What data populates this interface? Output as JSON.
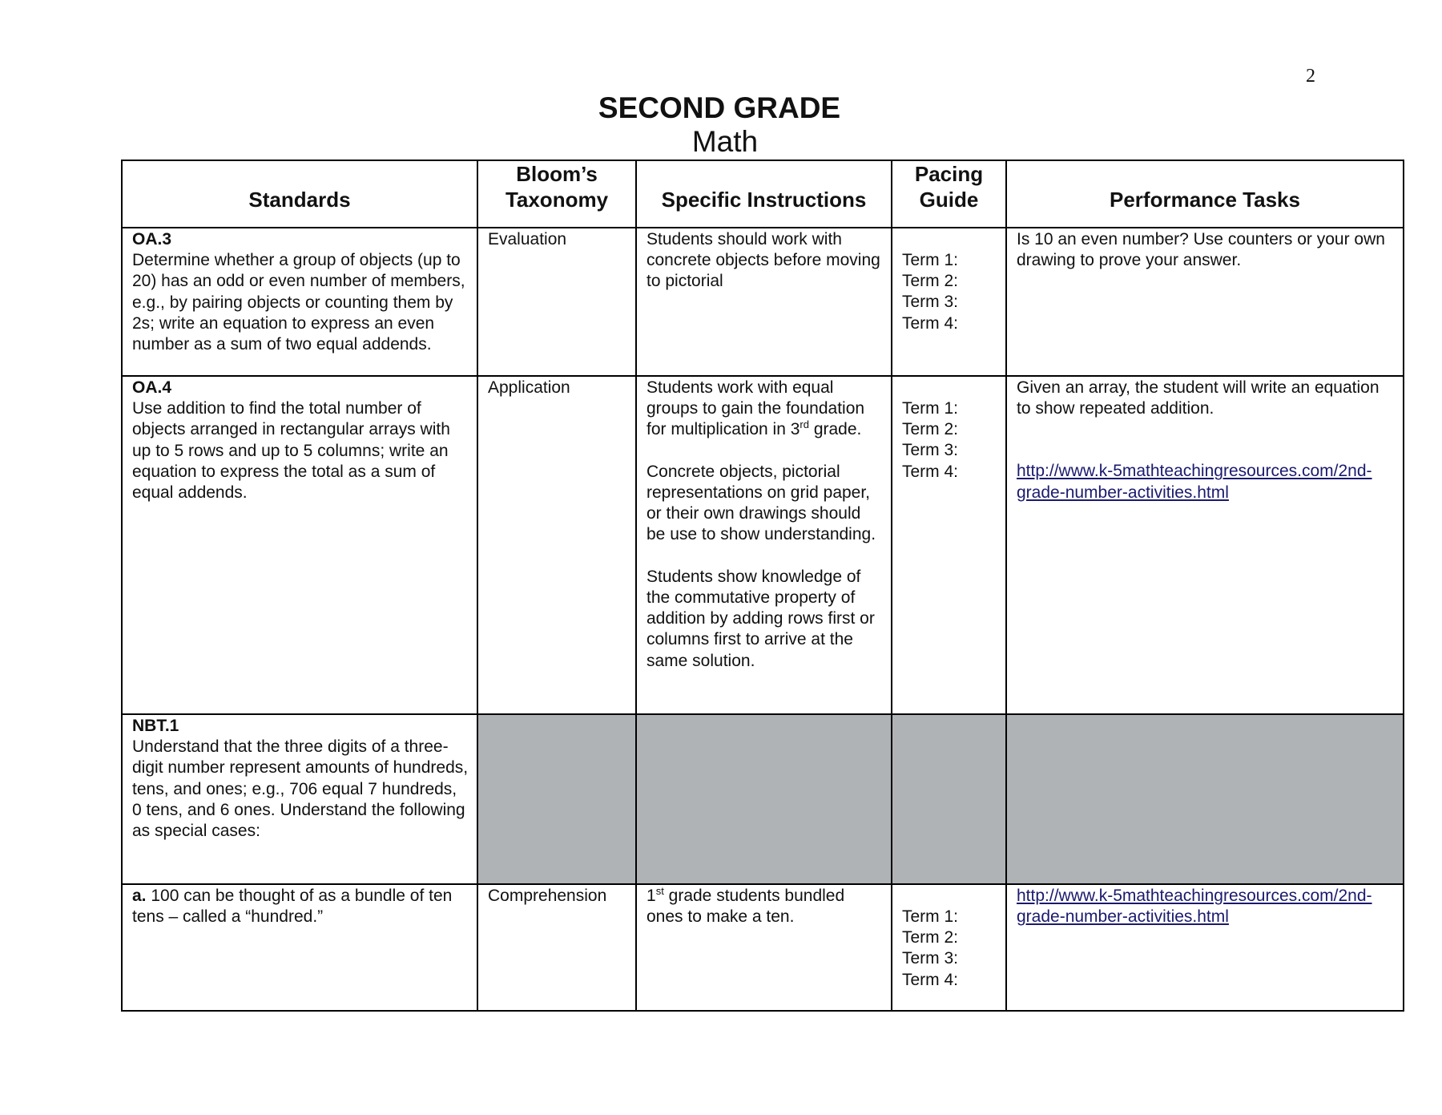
{
  "page_number": "2",
  "title": "SECOND GRADE",
  "subtitle": "Math",
  "colors": {
    "shaded_cell": "#b0b3b5",
    "link": "#1a1a6e"
  },
  "headers": [
    "Standards",
    "Bloom’s Taxonomy",
    "Specific Instructions",
    "Pacing Guide",
    "Performance Tasks"
  ],
  "terms": [
    "Term 1:",
    "Term 2:",
    "Term 3:",
    "Term 4:"
  ],
  "rows": [
    {
      "code": "OA.3",
      "standard": "Determine whether a group of objects (up to 20) has an odd or even number of members, e.g., by pairing objects or counting them by 2s; write an equation to express an even number as a sum of two equal addends.",
      "taxonomy": "Evaluation",
      "instructions": [
        "Students should work with concrete objects before moving to pictorial"
      ],
      "task": "Is 10 an even number?  Use counters or your own drawing to prove your answer."
    },
    {
      "code": "OA.4",
      "standard": "Use addition to find the total number of objects arranged in rectangular arrays with up to 5 rows and up to 5 columns; write an equation to express the total as a sum of equal addends.",
      "taxonomy": "Application",
      "instructions_first_pre": "Students work with equal groups to gain the foundation for multiplication in 3",
      "instructions_first_sup": "rd",
      "instructions_first_post": " grade.",
      "instructions": [
        "Concrete objects, pictorial representations on grid paper, or their own drawings should be use to show understanding.",
        "Students show knowledge of the commutative property of addition by adding rows first or columns first to arrive at the same solution."
      ],
      "task": "Given an array, the student will write an equation to show repeated addition.",
      "link": "http://www.k-5mathteachingresources.com/2nd-grade-number-activities.html"
    },
    {
      "code": "NBT.1",
      "standard": "Understand that the three digits of a three-digit number represent amounts of hundreds, tens, and ones; e.g., 706 equal 7 hundreds, 0 tens, and 6 ones. Understand the following as special cases:"
    },
    {
      "code": "a.",
      "standard": " 100 can be thought of as a bundle of ten tens – called a “hundred.”",
      "taxonomy": "Comprehension",
      "instructions_pre": "1",
      "instructions_sup": "st",
      "instructions_post": " grade students bundled ones to make a ten.",
      "link": "http://www.k-5mathteachingresources.com/2nd-grade-number-activities.html"
    }
  ]
}
